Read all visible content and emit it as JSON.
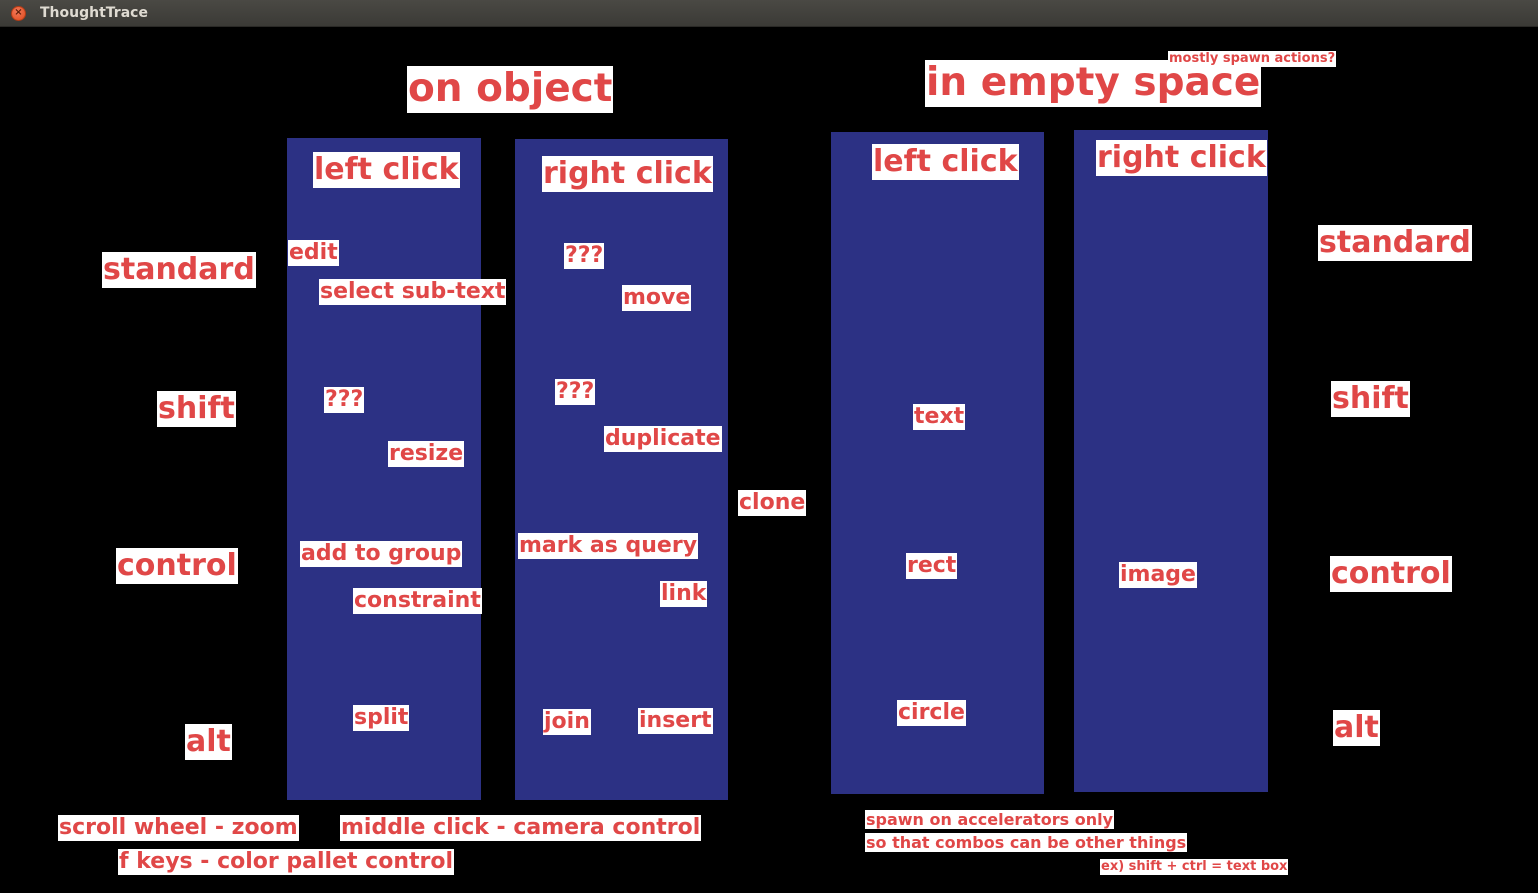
{
  "window": {
    "title": "ThoughtTrace",
    "close_glyph": "×"
  },
  "headings": {
    "on_object": "on object",
    "in_empty_space": "in empty space",
    "mostly_spawn": "mostly spawn actions?"
  },
  "columns": {
    "obj_left_title": "left click",
    "obj_right_title": "right click",
    "empty_left_title": "left click",
    "empty_right_title": "right click"
  },
  "modifiers_left": {
    "standard": "standard",
    "shift": "shift",
    "control": "control",
    "alt": "alt"
  },
  "modifiers_right": {
    "standard": "standard",
    "shift": "shift",
    "control": "control",
    "alt": "alt"
  },
  "obj_left_actions": {
    "edit": "edit",
    "select_sub_text": "select sub-text",
    "unknown": "???",
    "resize": "resize",
    "add_to_group": "add to group",
    "constraint": "constraint",
    "split": "split"
  },
  "obj_right_actions": {
    "unknown1": "???",
    "move": "move",
    "unknown2": "???",
    "duplicate": "duplicate",
    "mark_as_query": "mark as query",
    "link": "link",
    "join": "join",
    "insert": "insert"
  },
  "clone": "clone",
  "empty_left_actions": {
    "text": "text",
    "rect": "rect",
    "circle": "circle"
  },
  "empty_right_actions": {
    "image": "image"
  },
  "footer": {
    "scroll_wheel": "scroll wheel - zoom",
    "middle_click": "middle click - camera control",
    "f_keys": "f keys - color pallet control",
    "spawn_note1": "spawn on accelerators only",
    "spawn_note2": "so that combos can be other things",
    "spawn_example": "ex) shift + ctrl = text box"
  },
  "colors": {
    "background": "#000000",
    "panel": "#2c3184",
    "label_text": "#e04747",
    "label_bg": "#ffffff"
  }
}
